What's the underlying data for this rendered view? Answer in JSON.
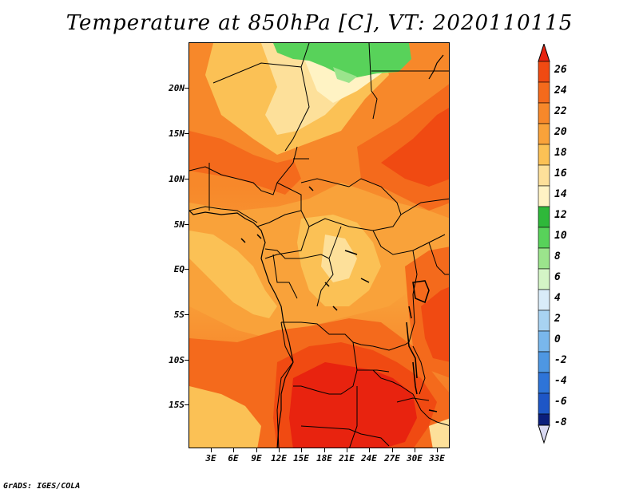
{
  "title": "Temperature at 850hPa [C], VT: 2020110115",
  "credit": "GrADS: IGES/COLA",
  "map": {
    "region": "Central and Southern-Central Africa",
    "latitude_labels": [
      "20N",
      "15N",
      "10N",
      "5N",
      "EQ",
      "5S",
      "10S",
      "15S"
    ],
    "longitude_labels": [
      "3E",
      "6E",
      "9E",
      "12E",
      "15E",
      "18E",
      "21E",
      "24E",
      "27E",
      "30E",
      "33E"
    ]
  },
  "colorbar": {
    "labels": [
      "26",
      "24",
      "22",
      "20",
      "18",
      "16",
      "14",
      "12",
      "10",
      "8",
      "6",
      "4",
      "2",
      "0",
      "-2",
      "-4",
      "-6",
      "-8"
    ],
    "colors": [
      "#e8230f",
      "#f04a12",
      "#f46a1c",
      "#f7882a",
      "#f9a23a",
      "#fbc155",
      "#fde09a",
      "#fff3c4",
      "#2fb83a",
      "#58d25a",
      "#9be48c",
      "#d4f5c6",
      "#d9ecf9",
      "#a8d3f2",
      "#79b7ec",
      "#4e97e2",
      "#2e74d8",
      "#1e56c6",
      "#1338a6",
      "#0b1e7c"
    ],
    "units": "C"
  }
}
